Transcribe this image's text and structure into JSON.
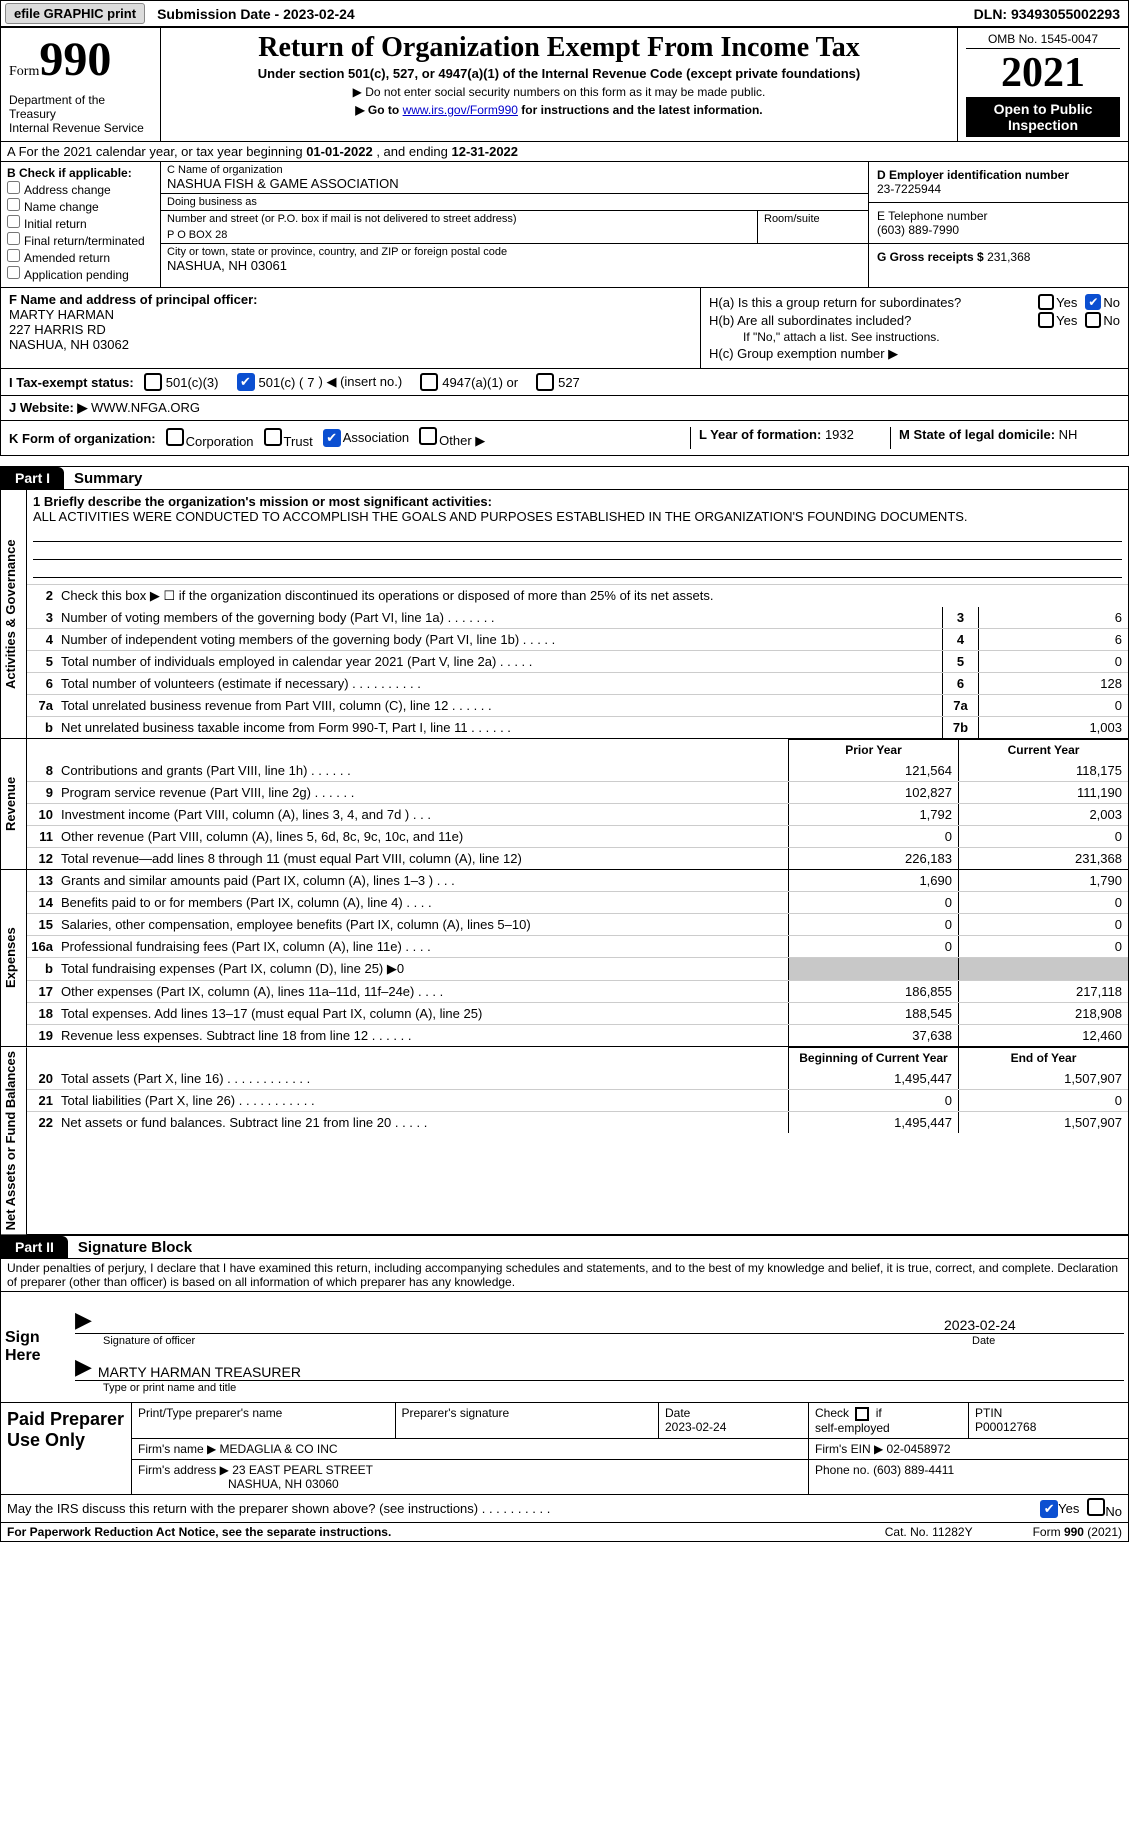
{
  "topbar": {
    "efile": "efile GRAPHIC print",
    "submission_label": "Submission Date - 2023-02-24",
    "dln": "DLN: 93493055002293"
  },
  "header": {
    "form_label": "Form",
    "form_number": "990",
    "agency": "Department of the Treasury\nInternal Revenue Service",
    "title": "Return of Organization Exempt From Income Tax",
    "subtitle": "Under section 501(c), 527, or 4947(a)(1) of the Internal Revenue Code (except private foundations)",
    "note1": "▶ Do not enter social security numbers on this form as it may be made public.",
    "note2_pre": "▶ Go to ",
    "note2_link": "www.irs.gov/Form990",
    "note2_post": " for instructions and the latest information.",
    "omb": "OMB No. 1545-0047",
    "year": "2021",
    "opi": "Open to Public Inspection"
  },
  "lineA": {
    "prefix": "A For the 2021 calendar year, or tax year beginning ",
    "begin": "01-01-2022",
    "mid": "  , and ending ",
    "end": "12-31-2022"
  },
  "colB": {
    "label": "B Check if applicable:",
    "opts": [
      "Address change",
      "Name change",
      "Initial return",
      "Final return/terminated",
      "Amended return",
      "Application pending"
    ]
  },
  "colC": {
    "name_lbl": "C Name of organization",
    "name": "NASHUA FISH & GAME ASSOCIATION",
    "dba_lbl": "Doing business as",
    "dba": "",
    "addr_lbl": "Number and street (or P.O. box if mail is not delivered to street address)",
    "room_lbl": "Room/suite",
    "addr": "P O BOX 28",
    "city_lbl": "City or town, state or province, country, and ZIP or foreign postal code",
    "city": "NASHUA, NH  03061"
  },
  "colD": {
    "ein_lbl": "D Employer identification number",
    "ein": "23-7225944",
    "tel_lbl": "E Telephone number",
    "tel": "(603) 889-7990",
    "gross_lbl": "G Gross receipts $ ",
    "gross": "231,368"
  },
  "secF": {
    "lbl": "F  Name and address of principal officer:",
    "name": "MARTY HARMAN",
    "addr1": "227 HARRIS RD",
    "addr2": "NASHUA, NH  03062"
  },
  "secH": {
    "ha": "H(a)  Is this a group return for subordinates?",
    "hb": "H(b)  Are all subordinates included?",
    "hb_note": "If \"No,\" attach a list. See instructions.",
    "hc": "H(c)  Group exemption number ▶"
  },
  "secI": {
    "lbl": "I  Tax-exempt status:",
    "o1": "501(c)(3)",
    "o2_pre": "501(c) ( ",
    "o2_num": "7",
    "o2_post": " ) ◀ (insert no.)",
    "o3": "4947(a)(1) or",
    "o4": "527"
  },
  "secJ": {
    "lbl": "J  Website: ▶ ",
    "val": "WWW.NFGA.ORG"
  },
  "secK": {
    "lbl": "K Form of organization:",
    "o1": "Corporation",
    "o2": "Trust",
    "o3": "Association",
    "o4": "Other ▶",
    "l_lbl": "L Year of formation: ",
    "l_val": "1932",
    "m_lbl": "M State of legal domicile: ",
    "m_val": "NH"
  },
  "part1": {
    "tab": "Part I",
    "title": "Summary",
    "sections": {
      "gov": "Activities & Governance",
      "rev": "Revenue",
      "exp": "Expenses",
      "net": "Net Assets or Fund Balances"
    },
    "mission_lbl": "1  Briefly describe the organization's mission or most significant activities:",
    "mission": "ALL ACTIVITIES WERE CONDUCTED TO ACCOMPLISH THE GOALS AND PURPOSES ESTABLISHED IN THE ORGANIZATION'S FOUNDING DOCUMENTS.",
    "line2": "Check this box ▶ ☐  if the organization discontinued its operations or disposed of more than 25% of its net assets.",
    "gov_rows": [
      {
        "n": "3",
        "t": "Number of voting members of the governing body (Part VI, line 1a)  .    .    .    .    .    .    .",
        "bn": "3",
        "v": "6"
      },
      {
        "n": "4",
        "t": "Number of independent voting members of the governing body (Part VI, line 1b)  .    .    .    .    .",
        "bn": "4",
        "v": "6"
      },
      {
        "n": "5",
        "t": "Total number of individuals employed in calendar year 2021 (Part V, line 2a)  .    .    .    .    .",
        "bn": "5",
        "v": "0"
      },
      {
        "n": "6",
        "t": "Total number of volunteers (estimate if necessary)   .    .    .    .    .    .    .    .    .    .",
        "bn": "6",
        "v": "128"
      },
      {
        "n": "7a",
        "t": "Total unrelated business revenue from Part VIII, column (C), line 12  .    .    .    .    .    .",
        "bn": "7a",
        "v": "0"
      },
      {
        "n": "b",
        "t": "Net unrelated business taxable income from Form 990-T, Part I, line 11  .    .    .    .    .    .",
        "bn": "7b",
        "v": "1,003"
      }
    ],
    "col_hdr_prior": "Prior Year",
    "col_hdr_curr": "Current Year",
    "rev_rows": [
      {
        "n": "8",
        "t": "Contributions and grants (Part VIII, line 1h)   .    .    .    .    .    .",
        "p": "121,564",
        "c": "118,175"
      },
      {
        "n": "9",
        "t": "Program service revenue (Part VIII, line 2g)   .    .    .    .    .    .",
        "p": "102,827",
        "c": "111,190"
      },
      {
        "n": "10",
        "t": "Investment income (Part VIII, column (A), lines 3, 4, and 7d )   .    .    .",
        "p": "1,792",
        "c": "2,003"
      },
      {
        "n": "11",
        "t": "Other revenue (Part VIII, column (A), lines 5, 6d, 8c, 9c, 10c, and 11e)",
        "p": "0",
        "c": "0"
      },
      {
        "n": "12",
        "t": "Total revenue—add lines 8 through 11 (must equal Part VIII, column (A), line 12)",
        "p": "226,183",
        "c": "231,368"
      }
    ],
    "exp_rows": [
      {
        "n": "13",
        "t": "Grants and similar amounts paid (Part IX, column (A), lines 1–3 )  .    .    .",
        "p": "1,690",
        "c": "1,790"
      },
      {
        "n": "14",
        "t": "Benefits paid to or for members (Part IX, column (A), line 4)  .    .    .    .",
        "p": "0",
        "c": "0"
      },
      {
        "n": "15",
        "t": "Salaries, other compensation, employee benefits (Part IX, column (A), lines 5–10)",
        "p": "0",
        "c": "0"
      },
      {
        "n": "16a",
        "t": "Professional fundraising fees (Part IX, column (A), line 11e)  .    .    .    .",
        "p": "0",
        "c": "0"
      },
      {
        "n": "b",
        "t": "Total fundraising expenses (Part IX, column (D), line 25) ▶0",
        "p": "",
        "c": "",
        "shade": true
      },
      {
        "n": "17",
        "t": "Other expenses (Part IX, column (A), lines 11a–11d, 11f–24e)  .    .    .    .",
        "p": "186,855",
        "c": "217,118"
      },
      {
        "n": "18",
        "t": "Total expenses. Add lines 13–17 (must equal Part IX, column (A), line 25)",
        "p": "188,545",
        "c": "218,908"
      },
      {
        "n": "19",
        "t": "Revenue less expenses. Subtract line 18 from line 12  .    .    .    .    .    .",
        "p": "37,638",
        "c": "12,460"
      }
    ],
    "net_hdr_prior": "Beginning of Current Year",
    "net_hdr_curr": "End of Year",
    "net_rows": [
      {
        "n": "20",
        "t": "Total assets (Part X, line 16)  .    .    .    .    .    .    .    .    .    .    .    .",
        "p": "1,495,447",
        "c": "1,507,907"
      },
      {
        "n": "21",
        "t": "Total liabilities (Part X, line 26)  .    .    .    .    .    .    .    .    .    .    .",
        "p": "0",
        "c": "0"
      },
      {
        "n": "22",
        "t": "Net assets or fund balances. Subtract line 21 from line 20  .    .    .    .    .",
        "p": "1,495,447",
        "c": "1,507,907"
      }
    ]
  },
  "part2": {
    "tab": "Part II",
    "title": "Signature Block",
    "decl": "Under penalties of perjury, I declare that I have examined this return, including accompanying schedules and statements, and to the best of my knowledge and belief, it is true, correct, and complete. Declaration of preparer (other than officer) is based on all information of which preparer has any knowledge."
  },
  "sign": {
    "label": "Sign Here",
    "sig_lbl": "Signature of officer",
    "date": "2023-02-24",
    "date_lbl": "Date",
    "name": "MARTY HARMAN  TREASURER",
    "name_lbl": "Type or print name and title"
  },
  "preparer": {
    "label": "Paid Preparer Use Only",
    "h1": "Print/Type preparer's name",
    "h2": "Preparer's signature",
    "h3_lbl": "Date",
    "h3": "2023-02-24",
    "h4": "Check ☐ if self-employed",
    "h5_lbl": "PTIN",
    "h5": "P00012768",
    "firm_name_lbl": "Firm's name   ▶ ",
    "firm_name": "MEDAGLIA & CO INC",
    "firm_ein_lbl": "Firm's EIN ▶ ",
    "firm_ein": "02-0458972",
    "firm_addr_lbl": "Firm's address ▶ ",
    "firm_addr1": "23 EAST PEARL STREET",
    "firm_addr2": "NASHUA, NH  03060",
    "phone_lbl": "Phone no. ",
    "phone": "(603) 889-4411"
  },
  "discuss": {
    "text": "May the IRS discuss this return with the preparer shown above? (see instructions)   .    .    .    .    .    .    .    .    .    .",
    "yes": "Yes",
    "no": "No"
  },
  "footer": {
    "left": "For Paperwork Reduction Act Notice, see the separate instructions.",
    "mid": "Cat. No. 11282Y",
    "right": "Form 990 (2021)"
  },
  "colors": {
    "check_blue": "#0b4fd1",
    "shade_grey": "#c8c8c8"
  }
}
